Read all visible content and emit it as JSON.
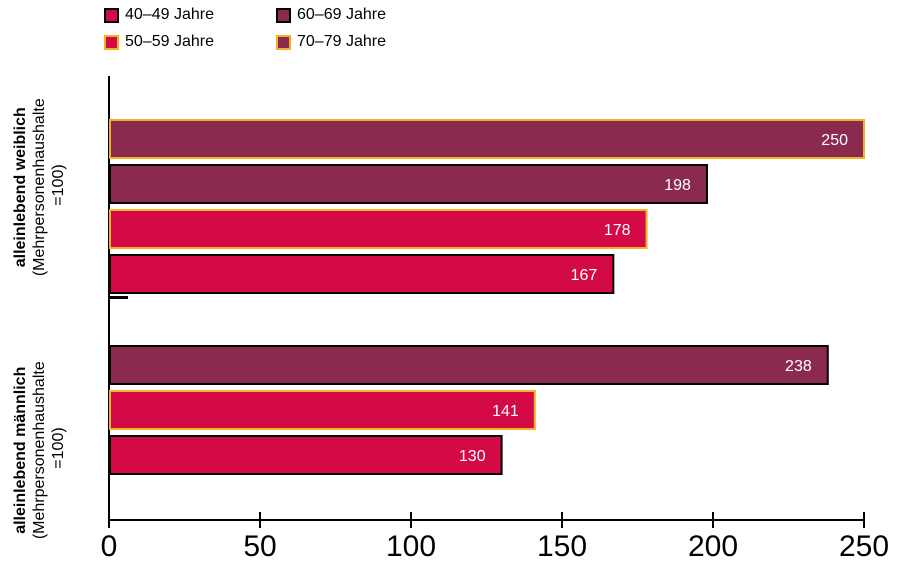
{
  "chart_data": {
    "type": "bar",
    "orientation": "horizontal",
    "xlim": [
      0,
      250
    ],
    "x_ticks": [
      "0",
      "50",
      "100",
      "150",
      "200",
      "250"
    ],
    "grid": false,
    "legend_position": "top-left",
    "groups": [
      {
        "label_bold": "alleinlebend weiblich",
        "label_line2": "(Mehrpersonenhaushalte",
        "label_line3": "=100)",
        "bars": [
          {
            "series": "70–79 Jahre",
            "value": 250,
            "label": "250"
          },
          {
            "series": "60–69 Jahre",
            "value": 198,
            "label": "198"
          },
          {
            "series": "50–59 Jahre",
            "value": 178,
            "label": "178"
          },
          {
            "series": "40–49 Jahre",
            "value": 167,
            "label": "167"
          }
        ]
      },
      {
        "label_bold": "alleinlebend männlich",
        "label_line2": "(Mehrpersonenhaushalte",
        "label_line3": "=100)",
        "bars": [
          {
            "series": "60–69 Jahre",
            "value": 238,
            "label": "238"
          },
          {
            "series": "50–59 Jahre",
            "value": 141,
            "label": "141"
          },
          {
            "series": "40–49 Jahre",
            "value": 130,
            "label": "130"
          }
        ]
      }
    ],
    "series": [
      {
        "name": "40–49 Jahre",
        "fill": "#d30a45",
        "stroke": "#000000"
      },
      {
        "name": "50–59 Jahre",
        "fill": "#d30a45",
        "stroke": "#f0b323"
      },
      {
        "name": "60–69 Jahre",
        "fill": "#8b2a4f",
        "stroke": "#000000"
      },
      {
        "name": "70–79 Jahre",
        "fill": "#8b2a4f",
        "stroke": "#f0b323"
      }
    ]
  }
}
